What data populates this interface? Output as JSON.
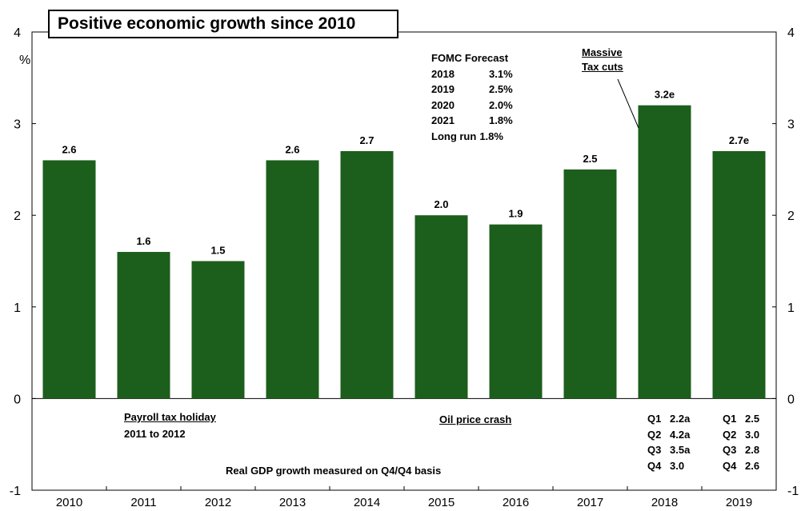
{
  "chart_data": {
    "type": "bar",
    "title": "Positive economic growth since 2010",
    "ylabel": "%",
    "ylim": [
      -1,
      4
    ],
    "yticks": [
      -1,
      0,
      1,
      2,
      3,
      4
    ],
    "categories": [
      "2010",
      "2011",
      "2012",
      "2013",
      "2014",
      "2015",
      "2016",
      "2017",
      "2018",
      "2019"
    ],
    "values": [
      2.6,
      1.6,
      1.5,
      2.6,
      2.7,
      2.0,
      1.9,
      2.5,
      3.2,
      2.7
    ],
    "data_labels": [
      "2.6",
      "1.6",
      "1.5",
      "2.6",
      "2.7",
      "2.0",
      "1.9",
      "2.5",
      "3.2e",
      "2.7e"
    ],
    "bar_color": "#1c5e1c",
    "grid": false,
    "annotations": {
      "fomc_title": "FOMC Forecast",
      "fomc_rows": [
        {
          "year": "2018",
          "value": "3.1%"
        },
        {
          "year": "2019",
          "value": "2.5%"
        },
        {
          "year": "2020",
          "value": "2.0%"
        },
        {
          "year": "2021",
          "value": "1.8%"
        },
        {
          "year": "Long run",
          "value": "1.8%"
        }
      ],
      "tax_cuts_line1": "Massive",
      "tax_cuts_line2": "Tax cuts",
      "payroll_line1": "Payroll tax holiday",
      "payroll_line2": "2011 to 2012",
      "oil_crash": "Oil price crash",
      "basis_note": "Real GDP growth measured on Q4/Q4 basis",
      "quarters_2018": [
        {
          "q": "Q1",
          "v": "2.2a"
        },
        {
          "q": "Q2",
          "v": "4.2a"
        },
        {
          "q": "Q3",
          "v": "3.5a"
        },
        {
          "q": "Q4",
          "v": "3.0"
        }
      ],
      "quarters_2019": [
        {
          "q": "Q1",
          "v": "2.5"
        },
        {
          "q": "Q2",
          "v": "3.0"
        },
        {
          "q": "Q3",
          "v": "2.8"
        },
        {
          "q": "Q4",
          "v": "2.6"
        }
      ]
    }
  }
}
